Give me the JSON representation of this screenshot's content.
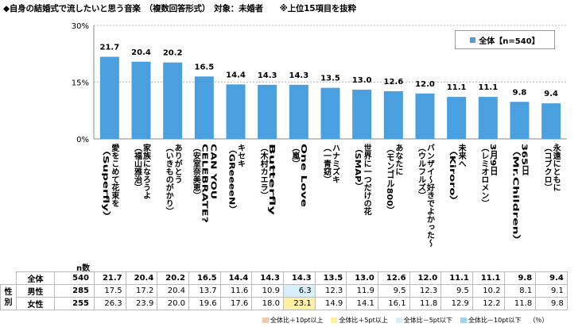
{
  "title": "◆自身の結婚式で流したいと思う音楽　（複数回答形式）　対象：未婚者　　※上位15項目を抜粋",
  "colors": {
    "bar": "#4a9fdf",
    "hi10": "#f7c8a8",
    "hi5": "#fff0a0",
    "lo5": "#d6effa",
    "lo10": "#9fd4ef"
  },
  "chart_data": {
    "type": "bar",
    "ylim": [
      0,
      30
    ],
    "yticks": [
      "0%",
      "15%",
      "30%"
    ],
    "legend": "全体【n=540】",
    "categories": [
      "愛をこめて花束を（Superfly）",
      "家族になろうよ（福山雅治）",
      "ありがとう（いきものがかり）",
      "CAN YOU CELEBRATE?（安室奈美恵）",
      "キセキ（GReeeeN）",
      "Butterfly（木村カエラ）",
      "One Love（嵐）",
      "ハナミズキ（一青窈）",
      "世界に一つだけの花（SMAP）",
      "あなたに（モンゴル800）",
      "バンザイ～好きでよかった～（ウルフルズ）",
      "未来へ（Kiroro）",
      "3月9日（レミオロメン）",
      "Mr.Children（365日）",
      "永遠にともに（コブクロ）"
    ],
    "values": [
      21.7,
      20.4,
      20.2,
      16.5,
      14.4,
      14.3,
      14.3,
      13.5,
      13.0,
      12.6,
      12.0,
      11.1,
      11.1,
      9.8,
      9.4
    ]
  },
  "category_label_lines": [
    [
      "愛をこめて花束を",
      "（Superfly）"
    ],
    [
      "家族になろうよ",
      "（福山雅治）"
    ],
    [
      "ありがとう",
      "（いきものがかり）"
    ],
    [
      "CAN YOU",
      "CELEBRATE?",
      "（安室奈美恵）"
    ],
    [
      "キセキ",
      "（GReeeeN）"
    ],
    [
      "Butterfly",
      "（木村カエラ）"
    ],
    [
      "One Love",
      "（嵐）"
    ],
    [
      "ハナミズキ",
      "（一青窈）"
    ],
    [
      "世界に一つだけの花",
      "（SMAP）"
    ],
    [
      "あなたに",
      "（モンゴル800）"
    ],
    [
      "バンザイ～好きでよかった～",
      "（ウルフルズ）"
    ],
    [
      "未来へ",
      "（Kiroro）"
    ],
    [
      "3月9日",
      "（レミオロメン）"
    ],
    [
      "365日",
      "（Mr.Children）"
    ],
    [
      "永遠にともに",
      "（コブクロ）"
    ]
  ],
  "table": {
    "n_label": "n数",
    "group_label": "性別",
    "rows": [
      {
        "label": "全体",
        "n": "540",
        "values": [
          "21.7",
          "20.4",
          "20.2",
          "16.5",
          "14.4",
          "14.3",
          "14.3",
          "13.5",
          "13.0",
          "12.6",
          "12.0",
          "11.1",
          "11.1",
          "9.8",
          "9.4"
        ],
        "hl": [
          "",
          "",
          "",
          "",
          "",
          "",
          "",
          "",
          "",
          "",
          "",
          "",
          "",
          "",
          ""
        ]
      },
      {
        "label": "男性",
        "n": "285",
        "values": [
          "17.5",
          "17.2",
          "20.4",
          "13.7",
          "11.6",
          "10.9",
          "6.3",
          "12.3",
          "11.9",
          "9.5",
          "12.3",
          "9.5",
          "10.2",
          "8.1",
          "9.1"
        ],
        "hl": [
          "",
          "",
          "",
          "",
          "",
          "",
          "lo5",
          "",
          "",
          "",
          "",
          "",
          "",
          "",
          ""
        ]
      },
      {
        "label": "女性",
        "n": "255",
        "values": [
          "26.3",
          "23.9",
          "20.0",
          "19.6",
          "17.6",
          "18.0",
          "23.1",
          "14.9",
          "14.1",
          "16.1",
          "11.8",
          "12.9",
          "12.2",
          "11.8",
          "9.8"
        ],
        "hl": [
          "",
          "",
          "",
          "",
          "",
          "",
          "hi5",
          "",
          "",
          "",
          "",
          "",
          "",
          "",
          ""
        ]
      }
    ]
  },
  "legend2": [
    {
      "label": "全体比＋10pt以上",
      "cls": "hi10"
    },
    {
      "label": "全体比＋5pt以上",
      "cls": "hi5"
    },
    {
      "label": "全体比－5pt以下",
      "cls": "lo5"
    },
    {
      "label": "全体比－10pt以下",
      "cls": "lo10"
    },
    {
      "label": "（％）",
      "cls": ""
    }
  ]
}
